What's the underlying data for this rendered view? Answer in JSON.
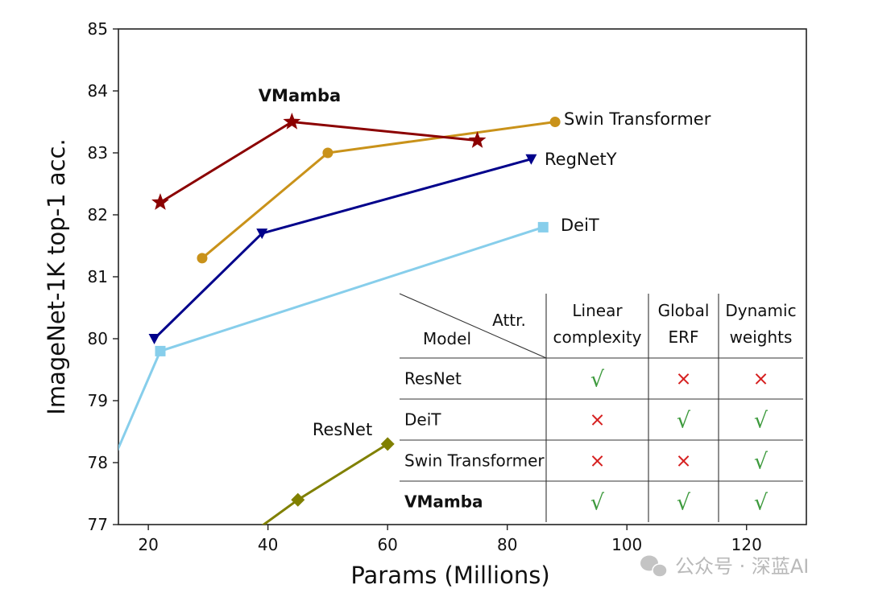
{
  "chart_data": {
    "type": "line",
    "xlabel": "Params (Millions)",
    "ylabel": "ImageNet-1K top-1 acc.",
    "xlim": [
      15,
      130
    ],
    "ylim": [
      77,
      85
    ],
    "xticks": [
      20,
      40,
      60,
      80,
      100,
      120
    ],
    "yticks": [
      77,
      78,
      79,
      80,
      81,
      82,
      83,
      84,
      85
    ],
    "grid": false,
    "legend": "none",
    "series": [
      {
        "name": "VMamba",
        "color": "#8b0000",
        "marker": "star",
        "x": [
          22,
          44,
          75
        ],
        "y": [
          82.2,
          83.5,
          83.2
        ]
      },
      {
        "name": "Swin Transformer",
        "color": "#c9921a",
        "marker": "circle",
        "x": [
          29,
          50,
          88
        ],
        "y": [
          81.3,
          83.0,
          83.5
        ]
      },
      {
        "name": "RegNetY",
        "color": "#00008b",
        "marker": "triangle-down",
        "x": [
          21,
          39,
          84
        ],
        "y": [
          80.0,
          81.7,
          82.9
        ]
      },
      {
        "name": "DeiT",
        "color": "#87ceeb",
        "marker": "square",
        "x": [
          5,
          22,
          86
        ],
        "y": [
          76.0,
          79.8,
          81.8
        ]
      },
      {
        "name": "ResNet",
        "color": "#808000",
        "marker": "diamond",
        "x": [
          25,
          45,
          60
        ],
        "y": [
          76.0,
          77.4,
          78.3
        ]
      }
    ],
    "inset_table": {
      "corner_attr": "Attr.",
      "corner_model": "Model",
      "columns": [
        [
          "Linear",
          "complexity"
        ],
        [
          "Global",
          "ERF"
        ],
        [
          "Dynamic",
          "weights"
        ]
      ],
      "rows": [
        {
          "model": "ResNet",
          "values": [
            "√",
            "×",
            "×"
          ]
        },
        {
          "model": "DeiT",
          "values": [
            "×",
            "√",
            "√"
          ]
        },
        {
          "model": "Swin Transformer",
          "values": [
            "×",
            "×",
            "√"
          ]
        },
        {
          "model": "VMamba",
          "values": [
            "√",
            "√",
            "√"
          ]
        }
      ]
    }
  },
  "watermark": {
    "text": "公众号 · 深蓝AI",
    "icon": "wechat-icon"
  }
}
